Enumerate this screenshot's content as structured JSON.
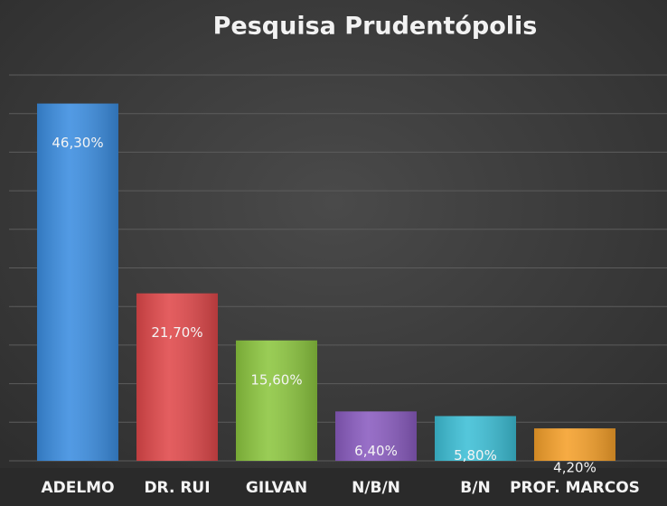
{
  "chart_data": {
    "type": "bar",
    "title": "Pesquisa  Prudentópolis",
    "categories": [
      "ADELMO",
      "DR. RUI",
      "GILVAN",
      "N/B/N",
      "B/N",
      "PROF. MARCOS"
    ],
    "values": [
      46.3,
      21.7,
      15.6,
      6.4,
      5.8,
      4.2
    ],
    "value_labels": [
      "46,30%",
      "21,70%",
      "15,60%",
      "6,40%",
      "5,80%",
      "4,20%"
    ],
    "colors": [
      "#3b8de0",
      "#e0484a",
      "#8cc63f",
      "#8a5cc0",
      "#3dbfd6",
      "#f5a02a"
    ],
    "ylim": [
      0,
      50
    ],
    "yticks": [
      0,
      5,
      10,
      15,
      20,
      25,
      30,
      35,
      40,
      45,
      50
    ],
    "grid": true
  }
}
